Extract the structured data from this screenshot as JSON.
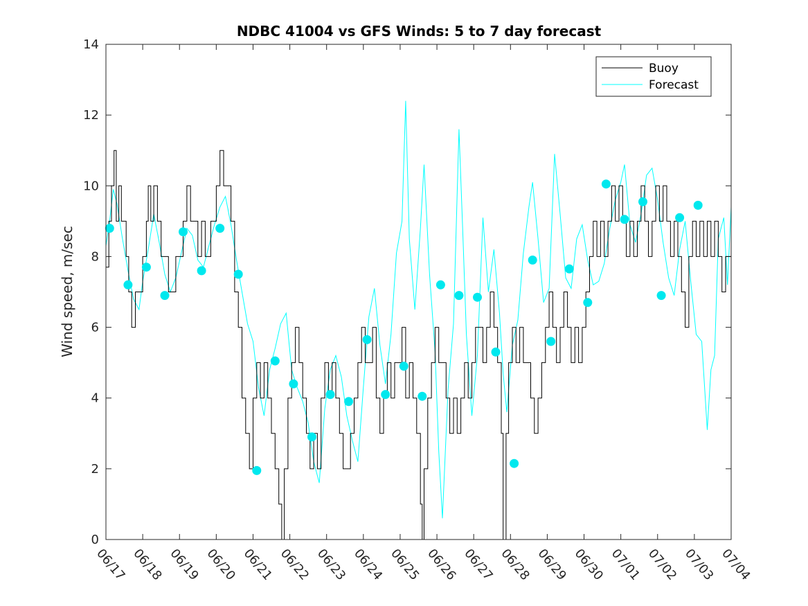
{
  "chart_data": {
    "type": "line",
    "title": "NDBC 41004 vs GFS Winds: 5 to 7 day forecast",
    "xlabel": "",
    "ylabel": "Wind speed, m/sec",
    "ylim": [
      0,
      14
    ],
    "yticks": [
      0,
      2,
      4,
      6,
      8,
      10,
      12,
      14
    ],
    "xlim": [
      0,
      17
    ],
    "xtick_labels": [
      "06/17",
      "06/18",
      "06/19",
      "06/20",
      "06/21",
      "06/22",
      "06/23",
      "06/24",
      "06/25",
      "06/26",
      "06/27",
      "06/28",
      "06/29",
      "06/30",
      "07/01",
      "07/02",
      "07/03",
      "07/04"
    ],
    "legend_position": "top-right",
    "colors": {
      "buoy": "#000000",
      "forecast": "#00ffff",
      "markers": "#00e8ee"
    },
    "series": [
      {
        "name": "Buoy",
        "style": "step",
        "points": [
          [
            0,
            7.7
          ],
          [
            0.08,
            9
          ],
          [
            0.15,
            10
          ],
          [
            0.22,
            11
          ],
          [
            0.28,
            9
          ],
          [
            0.35,
            10
          ],
          [
            0.42,
            9
          ],
          [
            0.5,
            9
          ],
          [
            0.55,
            8
          ],
          [
            0.62,
            7
          ],
          [
            0.7,
            6
          ],
          [
            0.8,
            7
          ],
          [
            0.9,
            7
          ],
          [
            1.0,
            8
          ],
          [
            1.1,
            9
          ],
          [
            1.15,
            10
          ],
          [
            1.22,
            9
          ],
          [
            1.3,
            10
          ],
          [
            1.4,
            9
          ],
          [
            1.5,
            8
          ],
          [
            1.6,
            8
          ],
          [
            1.7,
            7
          ],
          [
            1.8,
            7
          ],
          [
            1.9,
            8
          ],
          [
            2.0,
            8
          ],
          [
            2.1,
            9
          ],
          [
            2.2,
            10
          ],
          [
            2.3,
            9
          ],
          [
            2.4,
            9
          ],
          [
            2.5,
            8
          ],
          [
            2.6,
            9
          ],
          [
            2.7,
            8
          ],
          [
            2.85,
            9
          ],
          [
            3.0,
            10
          ],
          [
            3.1,
            11
          ],
          [
            3.2,
            10
          ],
          [
            3.3,
            10
          ],
          [
            3.4,
            9
          ],
          [
            3.5,
            7
          ],
          [
            3.6,
            6
          ],
          [
            3.7,
            4
          ],
          [
            3.8,
            3
          ],
          [
            3.9,
            2
          ],
          [
            4.0,
            4
          ],
          [
            4.1,
            5
          ],
          [
            4.2,
            4
          ],
          [
            4.3,
            5
          ],
          [
            4.4,
            4
          ],
          [
            4.5,
            3
          ],
          [
            4.6,
            2
          ],
          [
            4.7,
            1
          ],
          [
            4.78,
            0
          ],
          [
            4.85,
            2
          ],
          [
            4.95,
            4
          ],
          [
            5.05,
            5
          ],
          [
            5.15,
            6
          ],
          [
            5.25,
            5
          ],
          [
            5.35,
            4
          ],
          [
            5.45,
            3
          ],
          [
            5.55,
            2
          ],
          [
            5.65,
            3
          ],
          [
            5.75,
            2
          ],
          [
            5.85,
            4
          ],
          [
            5.95,
            5
          ],
          [
            6.05,
            4
          ],
          [
            6.15,
            5
          ],
          [
            6.25,
            4
          ],
          [
            6.35,
            3
          ],
          [
            6.45,
            2
          ],
          [
            6.55,
            2
          ],
          [
            6.65,
            3
          ],
          [
            6.75,
            4
          ],
          [
            6.85,
            5
          ],
          [
            6.95,
            6
          ],
          [
            7.05,
            5
          ],
          [
            7.15,
            5
          ],
          [
            7.25,
            6
          ],
          [
            7.35,
            4
          ],
          [
            7.45,
            3
          ],
          [
            7.55,
            4
          ],
          [
            7.65,
            5
          ],
          [
            7.75,
            4
          ],
          [
            7.85,
            5
          ],
          [
            7.95,
            5
          ],
          [
            8.05,
            6
          ],
          [
            8.15,
            4
          ],
          [
            8.25,
            5
          ],
          [
            8.35,
            4
          ],
          [
            8.45,
            3
          ],
          [
            8.55,
            1
          ],
          [
            8.6,
            0
          ],
          [
            8.65,
            2
          ],
          [
            8.75,
            4
          ],
          [
            8.85,
            5
          ],
          [
            8.95,
            6
          ],
          [
            9.05,
            5
          ],
          [
            9.15,
            5
          ],
          [
            9.25,
            4
          ],
          [
            9.35,
            3
          ],
          [
            9.45,
            4
          ],
          [
            9.55,
            3
          ],
          [
            9.65,
            4
          ],
          [
            9.75,
            5
          ],
          [
            9.85,
            4
          ],
          [
            9.95,
            5
          ],
          [
            10.05,
            6
          ],
          [
            10.15,
            6
          ],
          [
            10.25,
            5
          ],
          [
            10.35,
            6
          ],
          [
            10.45,
            7
          ],
          [
            10.55,
            6
          ],
          [
            10.65,
            5
          ],
          [
            10.75,
            3
          ],
          [
            10.8,
            0
          ],
          [
            10.88,
            3
          ],
          [
            10.95,
            5
          ],
          [
            11.05,
            6
          ],
          [
            11.15,
            5
          ],
          [
            11.25,
            6
          ],
          [
            11.35,
            5
          ],
          [
            11.45,
            5
          ],
          [
            11.55,
            4
          ],
          [
            11.65,
            3
          ],
          [
            11.75,
            4
          ],
          [
            11.85,
            5
          ],
          [
            11.95,
            6
          ],
          [
            12.05,
            7
          ],
          [
            12.15,
            6
          ],
          [
            12.25,
            5
          ],
          [
            12.35,
            6
          ],
          [
            12.45,
            7
          ],
          [
            12.55,
            6
          ],
          [
            12.65,
            5
          ],
          [
            12.75,
            6
          ],
          [
            12.85,
            5
          ],
          [
            12.95,
            6
          ],
          [
            13.05,
            7
          ],
          [
            13.15,
            8
          ],
          [
            13.25,
            9
          ],
          [
            13.35,
            8
          ],
          [
            13.45,
            9
          ],
          [
            13.55,
            8
          ],
          [
            13.65,
            9
          ],
          [
            13.75,
            10
          ],
          [
            13.85,
            9
          ],
          [
            13.95,
            10
          ],
          [
            14.05,
            9
          ],
          [
            14.15,
            8
          ],
          [
            14.25,
            9
          ],
          [
            14.35,
            8
          ],
          [
            14.45,
            9
          ],
          [
            14.55,
            10
          ],
          [
            14.65,
            9
          ],
          [
            14.75,
            8
          ],
          [
            14.85,
            9
          ],
          [
            14.95,
            10
          ],
          [
            15.05,
            9
          ],
          [
            15.15,
            10
          ],
          [
            15.25,
            9
          ],
          [
            15.35,
            8
          ],
          [
            15.45,
            9
          ],
          [
            15.55,
            8
          ],
          [
            15.65,
            7
          ],
          [
            15.75,
            6
          ],
          [
            15.85,
            8
          ],
          [
            15.95,
            9
          ],
          [
            16.05,
            8
          ],
          [
            16.15,
            9
          ],
          [
            16.25,
            8
          ],
          [
            16.35,
            9
          ],
          [
            16.45,
            8
          ],
          [
            16.55,
            9
          ],
          [
            16.65,
            8
          ],
          [
            16.75,
            7
          ],
          [
            16.85,
            8
          ],
          [
            17.0,
            8
          ]
        ]
      },
      {
        "name": "Forecast",
        "style": "line",
        "points": [
          [
            0,
            8.3
          ],
          [
            0.1,
            9
          ],
          [
            0.2,
            9.9
          ],
          [
            0.3,
            9.5
          ],
          [
            0.45,
            8.5
          ],
          [
            0.6,
            7.6
          ],
          [
            0.75,
            6.8
          ],
          [
            0.9,
            6.5
          ],
          [
            1.0,
            7.3
          ],
          [
            1.15,
            8.2
          ],
          [
            1.3,
            9.2
          ],
          [
            1.45,
            8.4
          ],
          [
            1.6,
            7.5
          ],
          [
            1.75,
            7.0
          ],
          [
            1.9,
            7.4
          ],
          [
            2.05,
            8.1
          ],
          [
            2.2,
            8.8
          ],
          [
            2.35,
            8.6
          ],
          [
            2.5,
            7.9
          ],
          [
            2.65,
            7.7
          ],
          [
            2.8,
            8.3
          ],
          [
            2.95,
            8.9
          ],
          [
            3.1,
            9.4
          ],
          [
            3.25,
            9.7
          ],
          [
            3.4,
            8.9
          ],
          [
            3.55,
            7.9
          ],
          [
            3.7,
            7.0
          ],
          [
            3.85,
            6.1
          ],
          [
            4.0,
            5.6
          ],
          [
            4.15,
            4.3
          ],
          [
            4.3,
            3.5
          ],
          [
            4.45,
            4.8
          ],
          [
            4.6,
            5.4
          ],
          [
            4.75,
            6.1
          ],
          [
            4.9,
            6.4
          ],
          [
            5.05,
            4.8
          ],
          [
            5.2,
            4.3
          ],
          [
            5.35,
            3.9
          ],
          [
            5.5,
            3.3
          ],
          [
            5.65,
            2.2
          ],
          [
            5.8,
            1.6
          ],
          [
            5.95,
            3.7
          ],
          [
            6.1,
            4.8
          ],
          [
            6.25,
            5.2
          ],
          [
            6.4,
            4.6
          ],
          [
            6.55,
            3.5
          ],
          [
            6.7,
            2.8
          ],
          [
            6.85,
            2.2
          ],
          [
            7.0,
            4.3
          ],
          [
            7.15,
            6.3
          ],
          [
            7.3,
            7.1
          ],
          [
            7.45,
            5.5
          ],
          [
            7.6,
            4.4
          ],
          [
            7.75,
            5.8
          ],
          [
            7.9,
            8.1
          ],
          [
            8.05,
            9.0
          ],
          [
            8.15,
            12.4
          ],
          [
            8.25,
            8.5
          ],
          [
            8.4,
            6.5
          ],
          [
            8.55,
            8.8
          ],
          [
            8.65,
            10.6
          ],
          [
            8.8,
            7.5
          ],
          [
            8.95,
            5.3
          ],
          [
            9.05,
            2.5
          ],
          [
            9.15,
            0.6
          ],
          [
            9.3,
            4.2
          ],
          [
            9.45,
            6.1
          ],
          [
            9.6,
            11.6
          ],
          [
            9.7,
            8.8
          ],
          [
            9.8,
            5.8
          ],
          [
            9.95,
            3.5
          ],
          [
            10.1,
            5.2
          ],
          [
            10.25,
            9.1
          ],
          [
            10.4,
            7.0
          ],
          [
            10.55,
            8.2
          ],
          [
            10.7,
            6.4
          ],
          [
            10.8,
            4.7
          ],
          [
            10.9,
            3.6
          ],
          [
            11.05,
            5.5
          ],
          [
            11.2,
            6.2
          ],
          [
            11.35,
            8.1
          ],
          [
            11.5,
            9.4
          ],
          [
            11.6,
            10.1
          ],
          [
            11.75,
            8.5
          ],
          [
            11.9,
            6.7
          ],
          [
            12.05,
            7.1
          ],
          [
            12.2,
            10.9
          ],
          [
            12.35,
            9.2
          ],
          [
            12.5,
            7.4
          ],
          [
            12.65,
            7.1
          ],
          [
            12.8,
            8.5
          ],
          [
            12.95,
            8.9
          ],
          [
            13.1,
            7.9
          ],
          [
            13.25,
            7.2
          ],
          [
            13.4,
            7.3
          ],
          [
            13.55,
            7.8
          ],
          [
            13.7,
            8.8
          ],
          [
            13.85,
            9.6
          ],
          [
            14.0,
            10.1
          ],
          [
            14.1,
            10.6
          ],
          [
            14.25,
            8.9
          ],
          [
            14.4,
            8.4
          ],
          [
            14.55,
            9.2
          ],
          [
            14.7,
            10.3
          ],
          [
            14.85,
            10.5
          ],
          [
            15.0,
            9.6
          ],
          [
            15.15,
            8.4
          ],
          [
            15.3,
            7.4
          ],
          [
            15.45,
            6.9
          ],
          [
            15.6,
            8.2
          ],
          [
            15.75,
            9.0
          ],
          [
            15.9,
            7.3
          ],
          [
            16.05,
            5.8
          ],
          [
            16.2,
            5.6
          ],
          [
            16.35,
            3.1
          ],
          [
            16.45,
            4.8
          ],
          [
            16.55,
            5.2
          ],
          [
            16.65,
            8.5
          ],
          [
            16.8,
            9.1
          ],
          [
            16.9,
            7.2
          ],
          [
            17.0,
            9.4
          ]
        ]
      }
    ],
    "markers": [
      [
        0.1,
        8.8
      ],
      [
        0.6,
        7.2
      ],
      [
        1.1,
        7.7
      ],
      [
        1.6,
        6.9
      ],
      [
        2.1,
        8.7
      ],
      [
        2.6,
        7.6
      ],
      [
        3.1,
        8.8
      ],
      [
        3.6,
        7.5
      ],
      [
        4.1,
        1.95
      ],
      [
        4.6,
        5.05
      ],
      [
        5.1,
        4.4
      ],
      [
        5.6,
        2.9
      ],
      [
        6.1,
        4.1
      ],
      [
        6.6,
        3.9
      ],
      [
        7.1,
        5.65
      ],
      [
        7.6,
        4.1
      ],
      [
        8.1,
        4.9
      ],
      [
        8.6,
        4.05
      ],
      [
        9.1,
        7.2
      ],
      [
        9.6,
        6.9
      ],
      [
        10.1,
        6.85
      ],
      [
        10.6,
        5.3
      ],
      [
        11.1,
        2.15
      ],
      [
        11.6,
        7.9
      ],
      [
        12.1,
        5.6
      ],
      [
        12.6,
        7.65
      ],
      [
        13.1,
        6.7
      ],
      [
        13.6,
        10.05
      ],
      [
        14.1,
        9.05
      ],
      [
        14.6,
        9.55
      ],
      [
        15.1,
        6.9
      ],
      [
        15.6,
        9.1
      ],
      [
        16.1,
        9.45
      ]
    ]
  }
}
